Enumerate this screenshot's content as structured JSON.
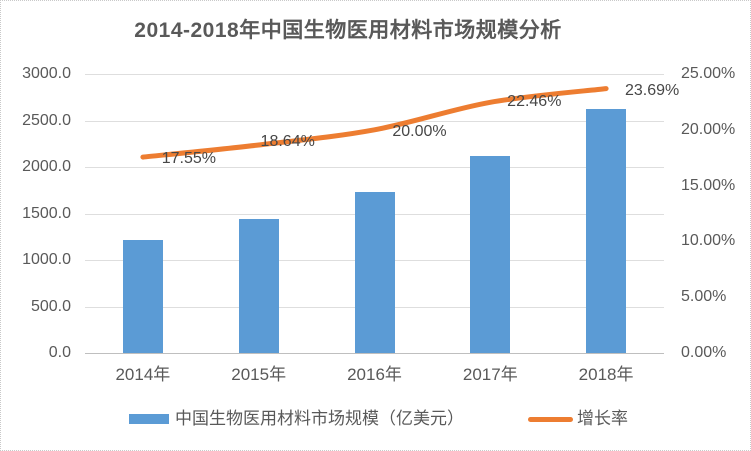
{
  "chart_data": {
    "type": "bar",
    "title": "2014-2018年中国生物医用材料市场规模分析",
    "categories": [
      "2014年",
      "2015年",
      "2016年",
      "2017年",
      "2018年"
    ],
    "series": [
      {
        "name": "中国生物医用材料市场规模（亿美元）",
        "type": "bar",
        "axis": "left",
        "color": "#5B9BD5",
        "values": [
          1215,
          1442,
          1730,
          2119,
          2620
        ]
      },
      {
        "name": "增长率",
        "type": "line",
        "axis": "right",
        "color": "#ED7D31",
        "values": [
          17.55,
          18.64,
          20.0,
          22.46,
          23.69
        ],
        "point_labels": [
          "17.55%",
          "18.64%",
          "20.00%",
          "22.46%",
          "23.69%"
        ]
      }
    ],
    "left_axis": {
      "min": 0,
      "max": 3000,
      "step": 500,
      "tick_labels": [
        "3000.0",
        "2500.0",
        "2000.0",
        "1500.0",
        "1000.0",
        "500.0",
        "0.0"
      ]
    },
    "right_axis": {
      "min": 0,
      "max": 25,
      "step": 5,
      "tick_labels": [
        "25.00%",
        "20.00%",
        "15.00%",
        "10.00%",
        "5.00%",
        "0.00%"
      ]
    },
    "grid": true,
    "legend_position": "bottom",
    "colors": {
      "bar": "#5B9BD5",
      "line": "#ED7D31",
      "gridline": "#DEDEDE",
      "baseline": "#BFBFBF",
      "axis_text": "#595959",
      "title_text": "#595959",
      "data_label_text": "#474747",
      "border": "#C9C9C9"
    }
  }
}
